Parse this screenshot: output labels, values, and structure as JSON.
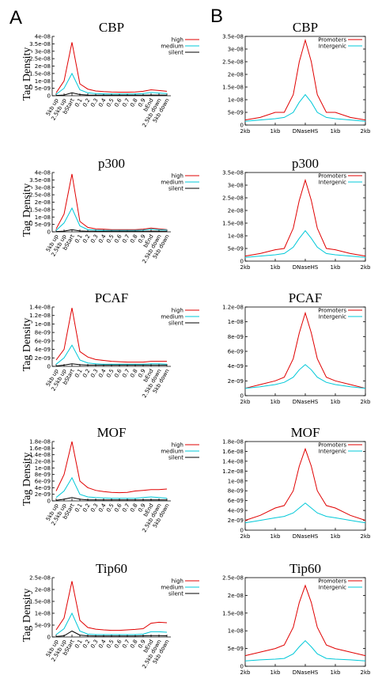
{
  "panel_labels": {
    "a": "A",
    "b": "B"
  },
  "colors": {
    "high": "#e00000",
    "medium": "#00c8d8",
    "silent": "#000000",
    "promoters": "#e00000",
    "intergenic": "#00c8d8"
  },
  "y_axis_label": "Tag Density",
  "chart_data": [
    {
      "type": "line",
      "panel": "A",
      "title": "CBP",
      "ylabel": "Tag Density",
      "ylim": [
        0,
        4e-08
      ],
      "y_ticks": [
        "0",
        "5e-09",
        "1e-08",
        "1.5e-08",
        "2e-08",
        "2.5e-08",
        "3e-08",
        "3.5e-08",
        "4e-08"
      ],
      "x_ticks": [
        "5kb up",
        "2.5kb up",
        "bStart",
        "0.1",
        "0.2",
        "0.3",
        "0.4",
        "0.5",
        "0.6",
        "0.7",
        "0.8",
        "0.9",
        "bEnd",
        "2.5kb down",
        "5kb down"
      ],
      "series": [
        {
          "name": "high",
          "values": [
            2e-09,
            1e-08,
            3.6e-08,
            8e-09,
            4.5e-09,
            3.2e-09,
            2.8e-09,
            2.5e-09,
            2.4e-09,
            2.4e-09,
            2.5e-09,
            3e-09,
            4e-09,
            3.5e-09,
            3e-09
          ]
        },
        {
          "name": "medium",
          "values": [
            1e-09,
            5e-09,
            1.5e-08,
            4e-09,
            2e-09,
            1.5e-09,
            1.3e-09,
            1.2e-09,
            1.2e-09,
            1.2e-09,
            1.2e-09,
            1.5e-09,
            2.2e-09,
            1.8e-09,
            1.5e-09
          ]
        },
        {
          "name": "silent",
          "values": [
            2e-10,
            5e-10,
            2e-09,
            8e-10,
            5e-10,
            4e-10,
            4e-10,
            4e-10,
            4e-10,
            4e-10,
            4e-10,
            4e-10,
            5e-10,
            5e-10,
            4e-10
          ]
        }
      ]
    },
    {
      "type": "line",
      "panel": "A",
      "title": "p300",
      "ylabel": "Tag Density",
      "ylim": [
        0,
        4e-08
      ],
      "y_ticks": [
        "0",
        "5e-09",
        "1e-08",
        "1.5e-08",
        "2e-08",
        "2.5e-08",
        "3e-08",
        "3.5e-08",
        "4e-08"
      ],
      "x_ticks": [
        "5kb up",
        "2.5kb up",
        "bStart",
        "0.1",
        "0.2",
        "0.3",
        "0.4",
        "0.5",
        "0.6",
        "0.7",
        "0.8",
        "0.9",
        "bEnd",
        "2.5kb down",
        "5kb down"
      ],
      "series": [
        {
          "name": "high",
          "values": [
            2e-09,
            1.2e-08,
            3.9e-08,
            7e-09,
            3e-09,
            2e-09,
            1.8e-09,
            1.5e-09,
            1.5e-09,
            1.5e-09,
            1.5e-09,
            1.8e-09,
            2.5e-09,
            2e-09,
            1.5e-09
          ]
        },
        {
          "name": "medium",
          "values": [
            1e-09,
            6e-09,
            1.6e-08,
            4e-09,
            1.5e-09,
            1.2e-09,
            1e-09,
            1e-09,
            1e-09,
            1e-09,
            1e-09,
            1.2e-09,
            1.8e-09,
            1.5e-09,
            1.2e-09
          ]
        },
        {
          "name": "silent",
          "values": [
            2e-10,
            5e-10,
            1.5e-09,
            6e-10,
            4e-10,
            4e-10,
            4e-10,
            4e-10,
            4e-10,
            4e-10,
            4e-10,
            4e-10,
            5e-10,
            5e-10,
            4e-10
          ]
        }
      ]
    },
    {
      "type": "line",
      "panel": "A",
      "title": "PCAF",
      "ylabel": "Tag Density",
      "ylim": [
        0,
        1.4e-08
      ],
      "y_ticks": [
        "0",
        "2e-09",
        "4e-09",
        "6e-09",
        "8e-09",
        "1e-08",
        "1.2e-08",
        "1.4e-08"
      ],
      "x_ticks": [
        "5kb up",
        "2.5kb up",
        "bStart",
        "0.1",
        "0.2",
        "0.3",
        "0.4",
        "0.5",
        "0.6",
        "0.7",
        "0.8",
        "0.9",
        "bEnd",
        "2.5kb down",
        "5kb down"
      ],
      "series": [
        {
          "name": "high",
          "values": [
            1.5e-09,
            4e-09,
            1.38e-08,
            3.5e-09,
            2.2e-09,
            1.6e-09,
            1.4e-09,
            1.2e-09,
            1.1e-09,
            1e-09,
            1e-09,
            1e-09,
            1.2e-09,
            1.2e-09,
            1.2e-09
          ]
        },
        {
          "name": "medium",
          "values": [
            5e-10,
            2e-09,
            5e-09,
            1.5e-09,
            8e-10,
            6e-10,
            5e-10,
            5e-10,
            5e-10,
            5e-10,
            5e-10,
            5e-10,
            6e-10,
            6e-10,
            5e-10
          ]
        },
        {
          "name": "silent",
          "values": [
            1e-10,
            3e-10,
            6e-10,
            4e-10,
            3e-10,
            3e-10,
            3e-10,
            3e-10,
            3e-10,
            3e-10,
            3e-10,
            3e-10,
            3e-10,
            3e-10,
            3e-10
          ]
        }
      ]
    },
    {
      "type": "line",
      "panel": "A",
      "title": "MOF",
      "ylabel": "Tag Density",
      "ylim": [
        0,
        1.8e-08
      ],
      "y_ticks": [
        "0",
        "2e-09",
        "4e-09",
        "6e-09",
        "8e-09",
        "1e-08",
        "1.2e-08",
        "1.4e-08",
        "1.6e-08",
        "1.8e-08"
      ],
      "x_ticks": [
        "5kb up",
        "2.5kb up",
        "bStart",
        "0.1",
        "0.2",
        "0.3",
        "0.4",
        "0.5",
        "0.6",
        "0.7",
        "0.8",
        "0.9",
        "bEnd",
        "2.5kb down",
        "5kb down"
      ],
      "series": [
        {
          "name": "high",
          "values": [
            3e-09,
            8e-09,
            1.8e-08,
            6e-09,
            4e-09,
            3.2e-09,
            2.8e-09,
            2.6e-09,
            2.5e-09,
            2.6e-09,
            3e-09,
            3.2e-09,
            3.4e-09,
            3.4e-09,
            3.6e-09
          ]
        },
        {
          "name": "medium",
          "values": [
            1e-09,
            3e-09,
            7e-09,
            2e-09,
            1.2e-09,
            1e-09,
            9e-10,
            8e-10,
            8e-10,
            8e-10,
            8e-10,
            1e-09,
            1.2e-09,
            1e-09,
            8e-10
          ]
        },
        {
          "name": "silent",
          "values": [
            2e-10,
            5e-10,
            1e-09,
            5e-10,
            3e-10,
            3e-10,
            3e-10,
            3e-10,
            3e-10,
            3e-10,
            3e-10,
            3e-10,
            3e-10,
            3e-10,
            3e-10
          ]
        }
      ]
    },
    {
      "type": "line",
      "panel": "A",
      "title": "Tip60",
      "ylabel": "Tag Density",
      "ylim": [
        0,
        2.5e-08
      ],
      "y_ticks": [
        "0",
        "5e-09",
        "1e-08",
        "1.5e-08",
        "2e-08",
        "2.5e-08"
      ],
      "x_ticks": [
        "5kb up",
        "2.5kb up",
        "bStart",
        "0.1",
        "0.2",
        "0.3",
        "0.4",
        "0.5",
        "0.6",
        "0.7",
        "0.8",
        "0.9",
        "bEnd",
        "2.5kb down",
        "5kb down"
      ],
      "series": [
        {
          "name": "high",
          "values": [
            3e-09,
            8e-09,
            2.35e-08,
            7e-09,
            4e-09,
            3.3e-09,
            3e-09,
            2.8e-09,
            2.8e-09,
            3e-09,
            3.2e-09,
            3.5e-09,
            5.8e-09,
            6.2e-09,
            6e-09
          ]
        },
        {
          "name": "medium",
          "values": [
            1e-09,
            3.5e-09,
            1e-08,
            2.5e-09,
            1.2e-09,
            1e-09,
            1e-09,
            1e-09,
            1e-09,
            1e-09,
            1e-09,
            1.2e-09,
            2.2e-09,
            2.2e-09,
            2e-09
          ]
        },
        {
          "name": "silent",
          "values": [
            2e-10,
            5e-10,
            2.5e-09,
            8e-10,
            5e-10,
            4e-10,
            4e-10,
            4e-10,
            4e-10,
            4e-10,
            4e-10,
            5e-10,
            6e-10,
            6e-10,
            5e-10
          ]
        }
      ]
    },
    {
      "type": "line",
      "panel": "B",
      "title": "CBP",
      "ylim": [
        0,
        3.5e-08
      ],
      "y_ticks": [
        "0",
        "5e-09",
        "1e-08",
        "1.5e-08",
        "2e-08",
        "2.5e-08",
        "3e-08",
        "3.5e-08"
      ],
      "x_ticks": [
        "2kb",
        "1kb",
        "DNaseHS",
        "1kb",
        "2kb"
      ],
      "x": [
        -2,
        -1.5,
        -1,
        -0.7,
        -0.4,
        -0.2,
        0,
        0.2,
        0.4,
        0.7,
        1,
        1.5,
        2
      ],
      "series": [
        {
          "name": "Promoters",
          "values": [
            2e-09,
            3e-09,
            5e-09,
            5e-09,
            1.2e-08,
            2.5e-08,
            3.35e-08,
            2.5e-08,
            1.2e-08,
            5e-09,
            5e-09,
            3e-09,
            2e-09
          ]
        },
        {
          "name": "Intergenic",
          "values": [
            1.5e-09,
            2e-09,
            2.5e-09,
            3e-09,
            5e-09,
            9e-09,
            1.2e-08,
            9e-09,
            5e-09,
            3e-09,
            2.5e-09,
            2e-09,
            1.5e-09
          ]
        }
      ]
    },
    {
      "type": "line",
      "panel": "B",
      "title": "p300",
      "ylim": [
        0,
        3.5e-08
      ],
      "y_ticks": [
        "0",
        "5e-09",
        "1e-08",
        "1.5e-08",
        "2e-08",
        "2.5e-08",
        "3e-08",
        "3.5e-08"
      ],
      "x_ticks": [
        "2kb",
        "1kb",
        "DNaseHS",
        "1kb",
        "2kb"
      ],
      "x": [
        -2,
        -1.5,
        -1,
        -0.7,
        -0.4,
        -0.2,
        0,
        0.2,
        0.4,
        0.7,
        1,
        1.5,
        2
      ],
      "series": [
        {
          "name": "Promoters",
          "values": [
            2e-09,
            3e-09,
            4.5e-09,
            5e-09,
            1.3e-08,
            2.4e-08,
            3.2e-08,
            2.4e-08,
            1.3e-08,
            5e-09,
            4.5e-09,
            3e-09,
            2e-09
          ]
        },
        {
          "name": "Intergenic",
          "values": [
            1.5e-09,
            2e-09,
            2.5e-09,
            3e-09,
            5.5e-09,
            9e-09,
            1.2e-08,
            9e-09,
            5.5e-09,
            3e-09,
            2.5e-09,
            2e-09,
            1.5e-09
          ]
        }
      ]
    },
    {
      "type": "line",
      "panel": "B",
      "title": "PCAF",
      "ylim": [
        0,
        1.2e-08
      ],
      "y_ticks": [
        "0",
        "2e-09",
        "4e-09",
        "6e-09",
        "8e-09",
        "1e-08",
        "1.2e-08"
      ],
      "x_ticks": [
        "2kb",
        "1kb",
        "DNaseHS",
        "1kb",
        "2kb"
      ],
      "x": [
        -2,
        -1.5,
        -1,
        -0.7,
        -0.4,
        -0.2,
        0,
        0.2,
        0.4,
        0.7,
        1,
        1.5,
        2
      ],
      "series": [
        {
          "name": "Promoters",
          "values": [
            1e-09,
            1.5e-09,
            2e-09,
            2.5e-09,
            5e-09,
            8.5e-09,
            1.12e-08,
            8.5e-09,
            5e-09,
            2.5e-09,
            2e-09,
            1.5e-09,
            1e-09
          ]
        },
        {
          "name": "Intergenic",
          "values": [
            1e-09,
            1.2e-09,
            1.5e-09,
            1.8e-09,
            2.5e-09,
            3.5e-09,
            4.2e-09,
            3.5e-09,
            2.5e-09,
            1.8e-09,
            1.5e-09,
            1.2e-09,
            1e-09
          ]
        }
      ]
    },
    {
      "type": "line",
      "panel": "B",
      "title": "MOF",
      "ylim": [
        0,
        1.8e-08
      ],
      "y_ticks": [
        "0",
        "2e-09",
        "4e-09",
        "6e-09",
        "8e-09",
        "1e-08",
        "1.2e-08",
        "1.4e-08",
        "1.6e-08",
        "1.8e-08"
      ],
      "x_ticks": [
        "2kb",
        "1kb",
        "DNaseHS",
        "1kb",
        "2kb"
      ],
      "x": [
        -2,
        -1.5,
        -1,
        -0.7,
        -0.4,
        -0.2,
        0,
        0.2,
        0.4,
        0.7,
        1,
        1.5,
        2
      ],
      "series": [
        {
          "name": "Promoters",
          "values": [
            2e-09,
            3e-09,
            4.5e-09,
            5e-09,
            8e-09,
            1.3e-08,
            1.65e-08,
            1.3e-08,
            8e-09,
            5e-09,
            4.5e-09,
            3e-09,
            2e-09
          ]
        },
        {
          "name": "Intergenic",
          "values": [
            1.5e-09,
            2e-09,
            2.5e-09,
            2.8e-09,
            3.5e-09,
            4.5e-09,
            5.5e-09,
            4.5e-09,
            3.5e-09,
            2.8e-09,
            2.5e-09,
            2e-09,
            1.5e-09
          ]
        }
      ]
    },
    {
      "type": "line",
      "panel": "B",
      "title": "Tip60",
      "ylim": [
        0,
        2.5e-08
      ],
      "y_ticks": [
        "0",
        "5e-09",
        "1e-08",
        "1.5e-08",
        "2e-08",
        "2.5e-08"
      ],
      "x_ticks": [
        "2kb",
        "1kb",
        "DNaseHS",
        "1kb",
        "2kb"
      ],
      "x": [
        -2,
        -1.5,
        -1,
        -0.7,
        -0.4,
        -0.2,
        0,
        0.2,
        0.4,
        0.7,
        1,
        1.5,
        2
      ],
      "series": [
        {
          "name": "Promoters",
          "values": [
            3e-09,
            4e-09,
            5e-09,
            6e-09,
            1.1e-08,
            1.8e-08,
            2.28e-08,
            1.8e-08,
            1.1e-08,
            6e-09,
            5e-09,
            4e-09,
            3e-09
          ]
        },
        {
          "name": "Intergenic",
          "values": [
            1.5e-09,
            1.8e-09,
            2e-09,
            2.2e-09,
            3.5e-09,
            5.5e-09,
            7.2e-09,
            5.5e-09,
            3.5e-09,
            2.2e-09,
            2e-09,
            1.8e-09,
            1.5e-09
          ]
        }
      ]
    }
  ]
}
